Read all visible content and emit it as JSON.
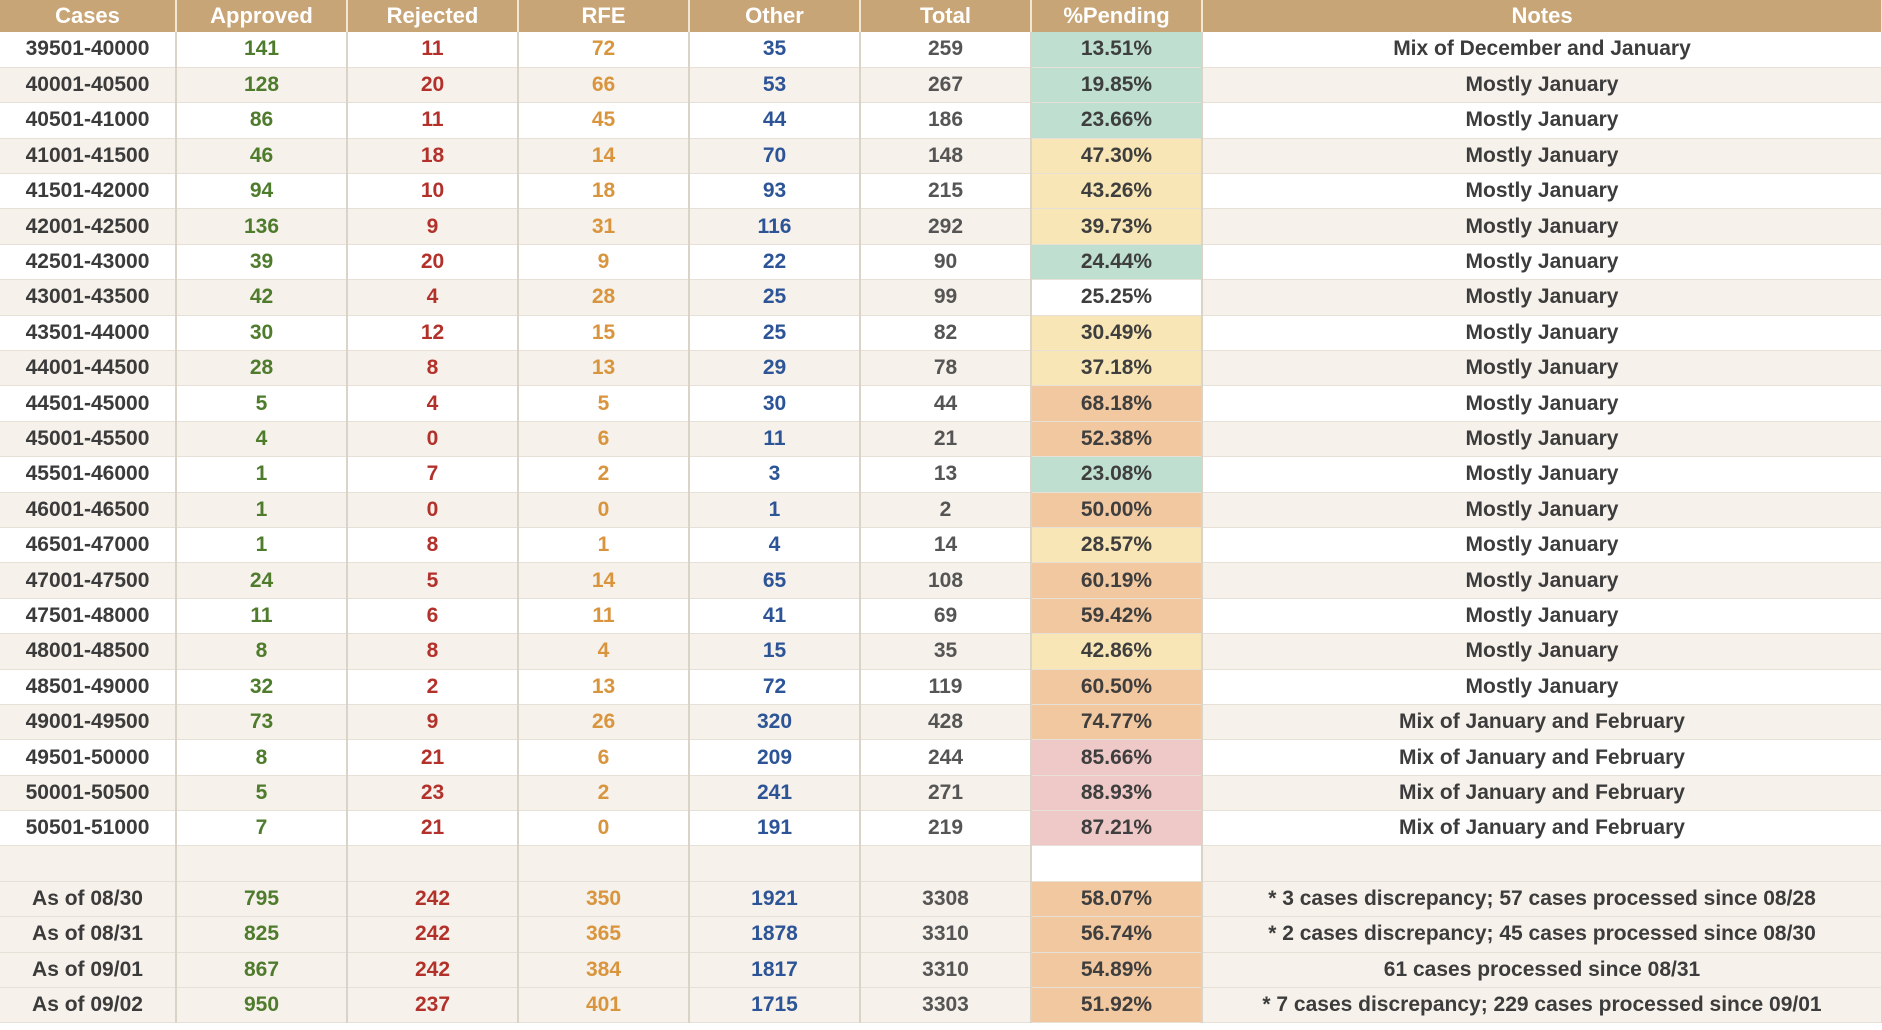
{
  "colors": {
    "header_bg": "#c8a576",
    "approved": "#4e7b2c",
    "rejected": "#b2312b",
    "rfe": "#d9953e",
    "other": "#2c5496",
    "pending_green": "#bfe0d0",
    "pending_yellow": "#f8e6b6",
    "pending_orange": "#f2c8a0",
    "pending_red": "#eec9c7"
  },
  "headers": [
    "Cases",
    "Approved",
    "Rejected",
    "RFE",
    "Other",
    "Total",
    "%Pending",
    "Notes"
  ],
  "rows": [
    {
      "cases": "39501-40000",
      "approved": "141",
      "rejected": "11",
      "rfe": "72",
      "other": "35",
      "total": "259",
      "pending": "13.51%",
      "pending_level": "green",
      "notes": "Mix of December and January"
    },
    {
      "cases": "40001-40500",
      "approved": "128",
      "rejected": "20",
      "rfe": "66",
      "other": "53",
      "total": "267",
      "pending": "19.85%",
      "pending_level": "green",
      "notes": "Mostly January"
    },
    {
      "cases": "40501-41000",
      "approved": "86",
      "rejected": "11",
      "rfe": "45",
      "other": "44",
      "total": "186",
      "pending": "23.66%",
      "pending_level": "green",
      "notes": "Mostly January"
    },
    {
      "cases": "41001-41500",
      "approved": "46",
      "rejected": "18",
      "rfe": "14",
      "other": "70",
      "total": "148",
      "pending": "47.30%",
      "pending_level": "yellow",
      "notes": "Mostly January"
    },
    {
      "cases": "41501-42000",
      "approved": "94",
      "rejected": "10",
      "rfe": "18",
      "other": "93",
      "total": "215",
      "pending": "43.26%",
      "pending_level": "yellow",
      "notes": "Mostly January"
    },
    {
      "cases": "42001-42500",
      "approved": "136",
      "rejected": "9",
      "rfe": "31",
      "other": "116",
      "total": "292",
      "pending": "39.73%",
      "pending_level": "yellow",
      "notes": "Mostly January"
    },
    {
      "cases": "42501-43000",
      "approved": "39",
      "rejected": "20",
      "rfe": "9",
      "other": "22",
      "total": "90",
      "pending": "24.44%",
      "pending_level": "green",
      "notes": "Mostly January"
    },
    {
      "cases": "43001-43500",
      "approved": "42",
      "rejected": "4",
      "rfe": "28",
      "other": "25",
      "total": "99",
      "pending": "25.25%",
      "pending_level": "blank",
      "notes": "Mostly January"
    },
    {
      "cases": "43501-44000",
      "approved": "30",
      "rejected": "12",
      "rfe": "15",
      "other": "25",
      "total": "82",
      "pending": "30.49%",
      "pending_level": "yellow",
      "notes": "Mostly January"
    },
    {
      "cases": "44001-44500",
      "approved": "28",
      "rejected": "8",
      "rfe": "13",
      "other": "29",
      "total": "78",
      "pending": "37.18%",
      "pending_level": "yellow",
      "notes": "Mostly January"
    },
    {
      "cases": "44501-45000",
      "approved": "5",
      "rejected": "4",
      "rfe": "5",
      "other": "30",
      "total": "44",
      "pending": "68.18%",
      "pending_level": "orange",
      "notes": "Mostly January"
    },
    {
      "cases": "45001-45500",
      "approved": "4",
      "rejected": "0",
      "rfe": "6",
      "other": "11",
      "total": "21",
      "pending": "52.38%",
      "pending_level": "orange",
      "notes": "Mostly January"
    },
    {
      "cases": "45501-46000",
      "approved": "1",
      "rejected": "7",
      "rfe": "2",
      "other": "3",
      "total": "13",
      "pending": "23.08%",
      "pending_level": "green",
      "notes": "Mostly January"
    },
    {
      "cases": "46001-46500",
      "approved": "1",
      "rejected": "0",
      "rfe": "0",
      "other": "1",
      "total": "2",
      "pending": "50.00%",
      "pending_level": "orange",
      "notes": "Mostly January"
    },
    {
      "cases": "46501-47000",
      "approved": "1",
      "rejected": "8",
      "rfe": "1",
      "other": "4",
      "total": "14",
      "pending": "28.57%",
      "pending_level": "yellow",
      "notes": "Mostly January"
    },
    {
      "cases": "47001-47500",
      "approved": "24",
      "rejected": "5",
      "rfe": "14",
      "other": "65",
      "total": "108",
      "pending": "60.19%",
      "pending_level": "orange",
      "notes": "Mostly January"
    },
    {
      "cases": "47501-48000",
      "approved": "11",
      "rejected": "6",
      "rfe": "11",
      "other": "41",
      "total": "69",
      "pending": "59.42%",
      "pending_level": "orange",
      "notes": "Mostly January"
    },
    {
      "cases": "48001-48500",
      "approved": "8",
      "rejected": "8",
      "rfe": "4",
      "other": "15",
      "total": "35",
      "pending": "42.86%",
      "pending_level": "yellow",
      "notes": "Mostly January"
    },
    {
      "cases": "48501-49000",
      "approved": "32",
      "rejected": "2",
      "rfe": "13",
      "other": "72",
      "total": "119",
      "pending": "60.50%",
      "pending_level": "orange",
      "notes": "Mostly January"
    },
    {
      "cases": "49001-49500",
      "approved": "73",
      "rejected": "9",
      "rfe": "26",
      "other": "320",
      "total": "428",
      "pending": "74.77%",
      "pending_level": "orange",
      "notes": "Mix of January and February"
    },
    {
      "cases": "49501-50000",
      "approved": "8",
      "rejected": "21",
      "rfe": "6",
      "other": "209",
      "total": "244",
      "pending": "85.66%",
      "pending_level": "red",
      "notes": "Mix of January and February"
    },
    {
      "cases": "50001-50500",
      "approved": "5",
      "rejected": "23",
      "rfe": "2",
      "other": "241",
      "total": "271",
      "pending": "88.93%",
      "pending_level": "red",
      "notes": "Mix of January and February"
    },
    {
      "cases": "50501-51000",
      "approved": "7",
      "rejected": "21",
      "rfe": "0",
      "other": "191",
      "total": "219",
      "pending": "87.21%",
      "pending_level": "red",
      "notes": "Mix of January and February"
    }
  ],
  "summary": [
    {
      "cases": "As of 08/30",
      "approved": "795",
      "rejected": "242",
      "rfe": "350",
      "other": "1921",
      "total": "3308",
      "pending": "58.07%",
      "pending_level": "orange",
      "notes": "* 3 cases discrepancy; 57 cases processed since 08/28"
    },
    {
      "cases": "As of 08/31",
      "approved": "825",
      "rejected": "242",
      "rfe": "365",
      "other": "1878",
      "total": "3310",
      "pending": "56.74%",
      "pending_level": "orange",
      "notes": "* 2 cases discrepancy; 45 cases processed since 08/30"
    },
    {
      "cases": "As of 09/01",
      "approved": "867",
      "rejected": "242",
      "rfe": "384",
      "other": "1817",
      "total": "3310",
      "pending": "54.89%",
      "pending_level": "orange",
      "notes": "61 cases processed since 08/31"
    },
    {
      "cases": "As of 09/02",
      "approved": "950",
      "rejected": "237",
      "rfe": "401",
      "other": "1715",
      "total": "3303",
      "pending": "51.92%",
      "pending_level": "orange",
      "notes": "* 7 cases discrepancy; 229 cases processed since 09/01"
    }
  ]
}
